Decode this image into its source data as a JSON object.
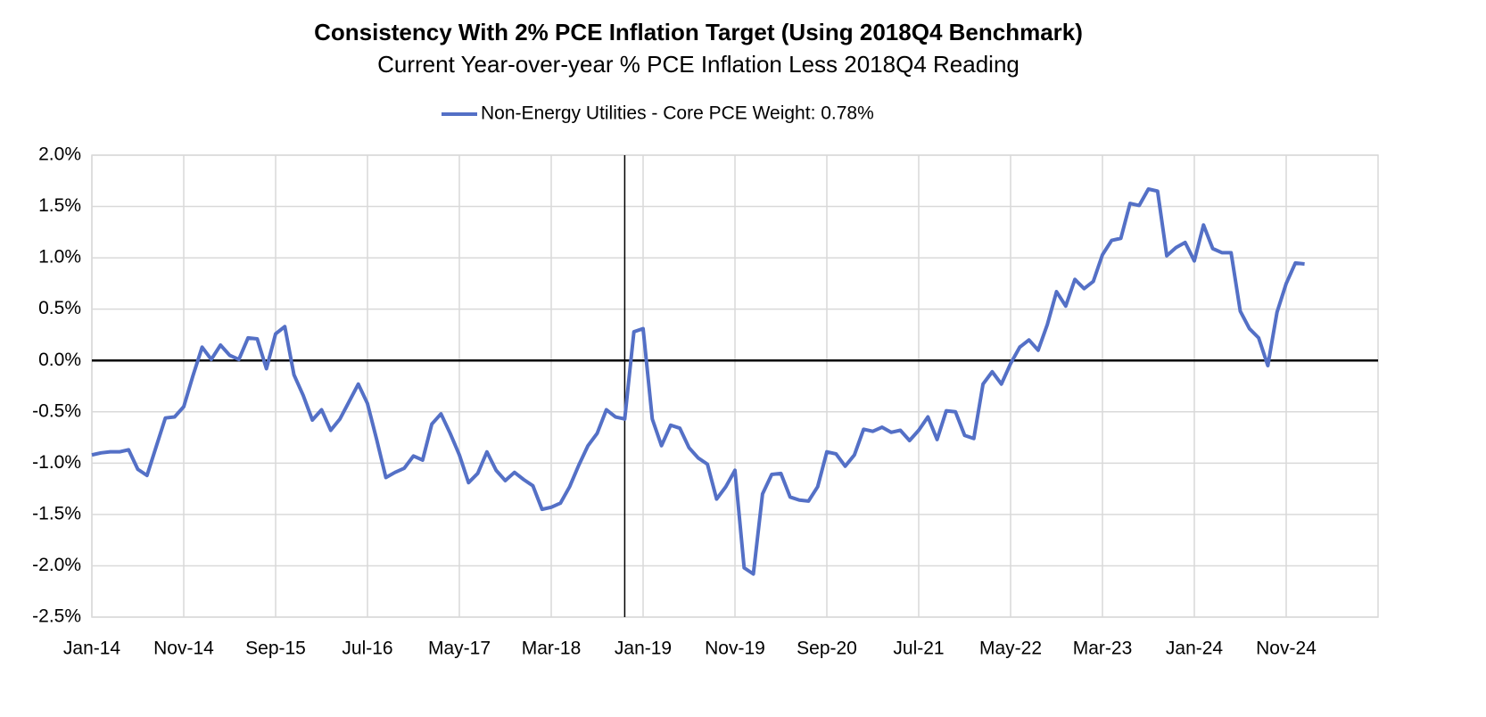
{
  "chart_data": {
    "type": "line",
    "title": "Consistency With 2% PCE Inflation Target (Using 2018Q4 Benchmark)",
    "subtitle": "Current Year-over-year % PCE Inflation Less 2018Q4 Reading",
    "categories": [
      "Jan-14",
      null,
      null,
      null,
      null,
      null,
      null,
      null,
      null,
      null,
      "Nov-14",
      null,
      null,
      null,
      null,
      null,
      null,
      null,
      null,
      null,
      "Sep-15",
      null,
      null,
      null,
      null,
      null,
      null,
      null,
      null,
      null,
      "Jul-16",
      null,
      null,
      null,
      null,
      null,
      null,
      null,
      null,
      null,
      "May-17",
      null,
      null,
      null,
      null,
      null,
      null,
      null,
      null,
      null,
      "Mar-18",
      null,
      null,
      null,
      null,
      null,
      null,
      null,
      null,
      null,
      "Jan-19",
      null,
      null,
      null,
      null,
      null,
      null,
      null,
      null,
      null,
      "Nov-19",
      null,
      null,
      null,
      null,
      null,
      null,
      null,
      null,
      null,
      "Sep-20",
      null,
      null,
      null,
      null,
      null,
      null,
      null,
      null,
      null,
      "Jul-21",
      null,
      null,
      null,
      null,
      null,
      null,
      null,
      null,
      null,
      "May-22",
      null,
      null,
      null,
      null,
      null,
      null,
      null,
      null,
      null,
      "Mar-23",
      null,
      null,
      null,
      null,
      null,
      null,
      null,
      null,
      null,
      "Jan-24",
      null,
      null,
      null,
      null,
      null,
      null,
      null,
      null,
      null,
      "Nov-24",
      null,
      null,
      null,
      null,
      null,
      null,
      null,
      null,
      null,
      null
    ],
    "series": [
      {
        "name": "Non-Energy Utilities - Core PCE Weight: 0.78%",
        "color": "#5470c6",
        "values": [
          -0.92,
          -0.9,
          -0.89,
          -0.89,
          -0.87,
          -1.06,
          -1.12,
          -0.84,
          -0.56,
          -0.55,
          -0.45,
          -0.15,
          0.13,
          0.01,
          0.15,
          0.05,
          0.01,
          0.22,
          0.21,
          -0.08,
          0.26,
          0.33,
          -0.14,
          -0.34,
          -0.58,
          -0.48,
          -0.68,
          -0.57,
          -0.4,
          -0.23,
          -0.42,
          -0.77,
          -1.14,
          -1.09,
          -1.05,
          -0.93,
          -0.97,
          -0.62,
          -0.52,
          -0.71,
          -0.92,
          -1.19,
          -1.1,
          -0.89,
          -1.07,
          -1.17,
          -1.09,
          -1.16,
          -1.22,
          -1.45,
          -1.43,
          -1.39,
          -1.23,
          -1.02,
          -0.83,
          -0.71,
          -0.48,
          -0.55,
          -0.57,
          0.28,
          0.31,
          -0.57,
          -0.83,
          -0.63,
          -0.66,
          -0.85,
          -0.95,
          -1.01,
          -1.35,
          -1.23,
          -1.07,
          -2.02,
          -2.08,
          -1.3,
          -1.11,
          -1.1,
          -1.33,
          -1.36,
          -1.37,
          -1.23,
          -0.89,
          -0.91,
          -1.03,
          -0.92,
          -0.67,
          -0.69,
          -0.65,
          -0.7,
          -0.68,
          -0.78,
          -0.68,
          -0.55,
          -0.77,
          -0.49,
          -0.5,
          -0.73,
          -0.76,
          -0.23,
          -0.11,
          -0.23,
          -0.03,
          0.13,
          0.2,
          0.1,
          0.35,
          0.67,
          0.53,
          0.79,
          0.7,
          0.77,
          1.03,
          1.17,
          1.19,
          1.53,
          1.51,
          1.67,
          1.65,
          1.02,
          1.1,
          1.15,
          0.97,
          1.32,
          1.09,
          1.05,
          1.05,
          0.48,
          0.31,
          0.22,
          -0.05,
          0.47,
          0.75,
          0.95,
          0.94,
          null,
          null,
          null,
          null,
          null,
          null,
          null,
          null
        ]
      }
    ],
    "ylim": [
      -2.5,
      2.0
    ],
    "yticks": [
      {
        "value": -2.5,
        "label": "-2.5%"
      },
      {
        "value": -2.0,
        "label": "-2.0%"
      },
      {
        "value": -1.5,
        "label": "-1.5%"
      },
      {
        "value": -1.0,
        "label": "-1.0%"
      },
      {
        "value": -0.5,
        "label": "-0.5%"
      },
      {
        "value": 0,
        "label": "0.0%"
      },
      {
        "value": 0.5,
        "label": "0.5%"
      },
      {
        "value": 1.0,
        "label": "1.0%"
      },
      {
        "value": 1.5,
        "label": "1.5%"
      },
      {
        "value": 2.0,
        "label": "2.0%"
      }
    ],
    "reference_line_index": 58,
    "grid": true,
    "legend": "top"
  }
}
